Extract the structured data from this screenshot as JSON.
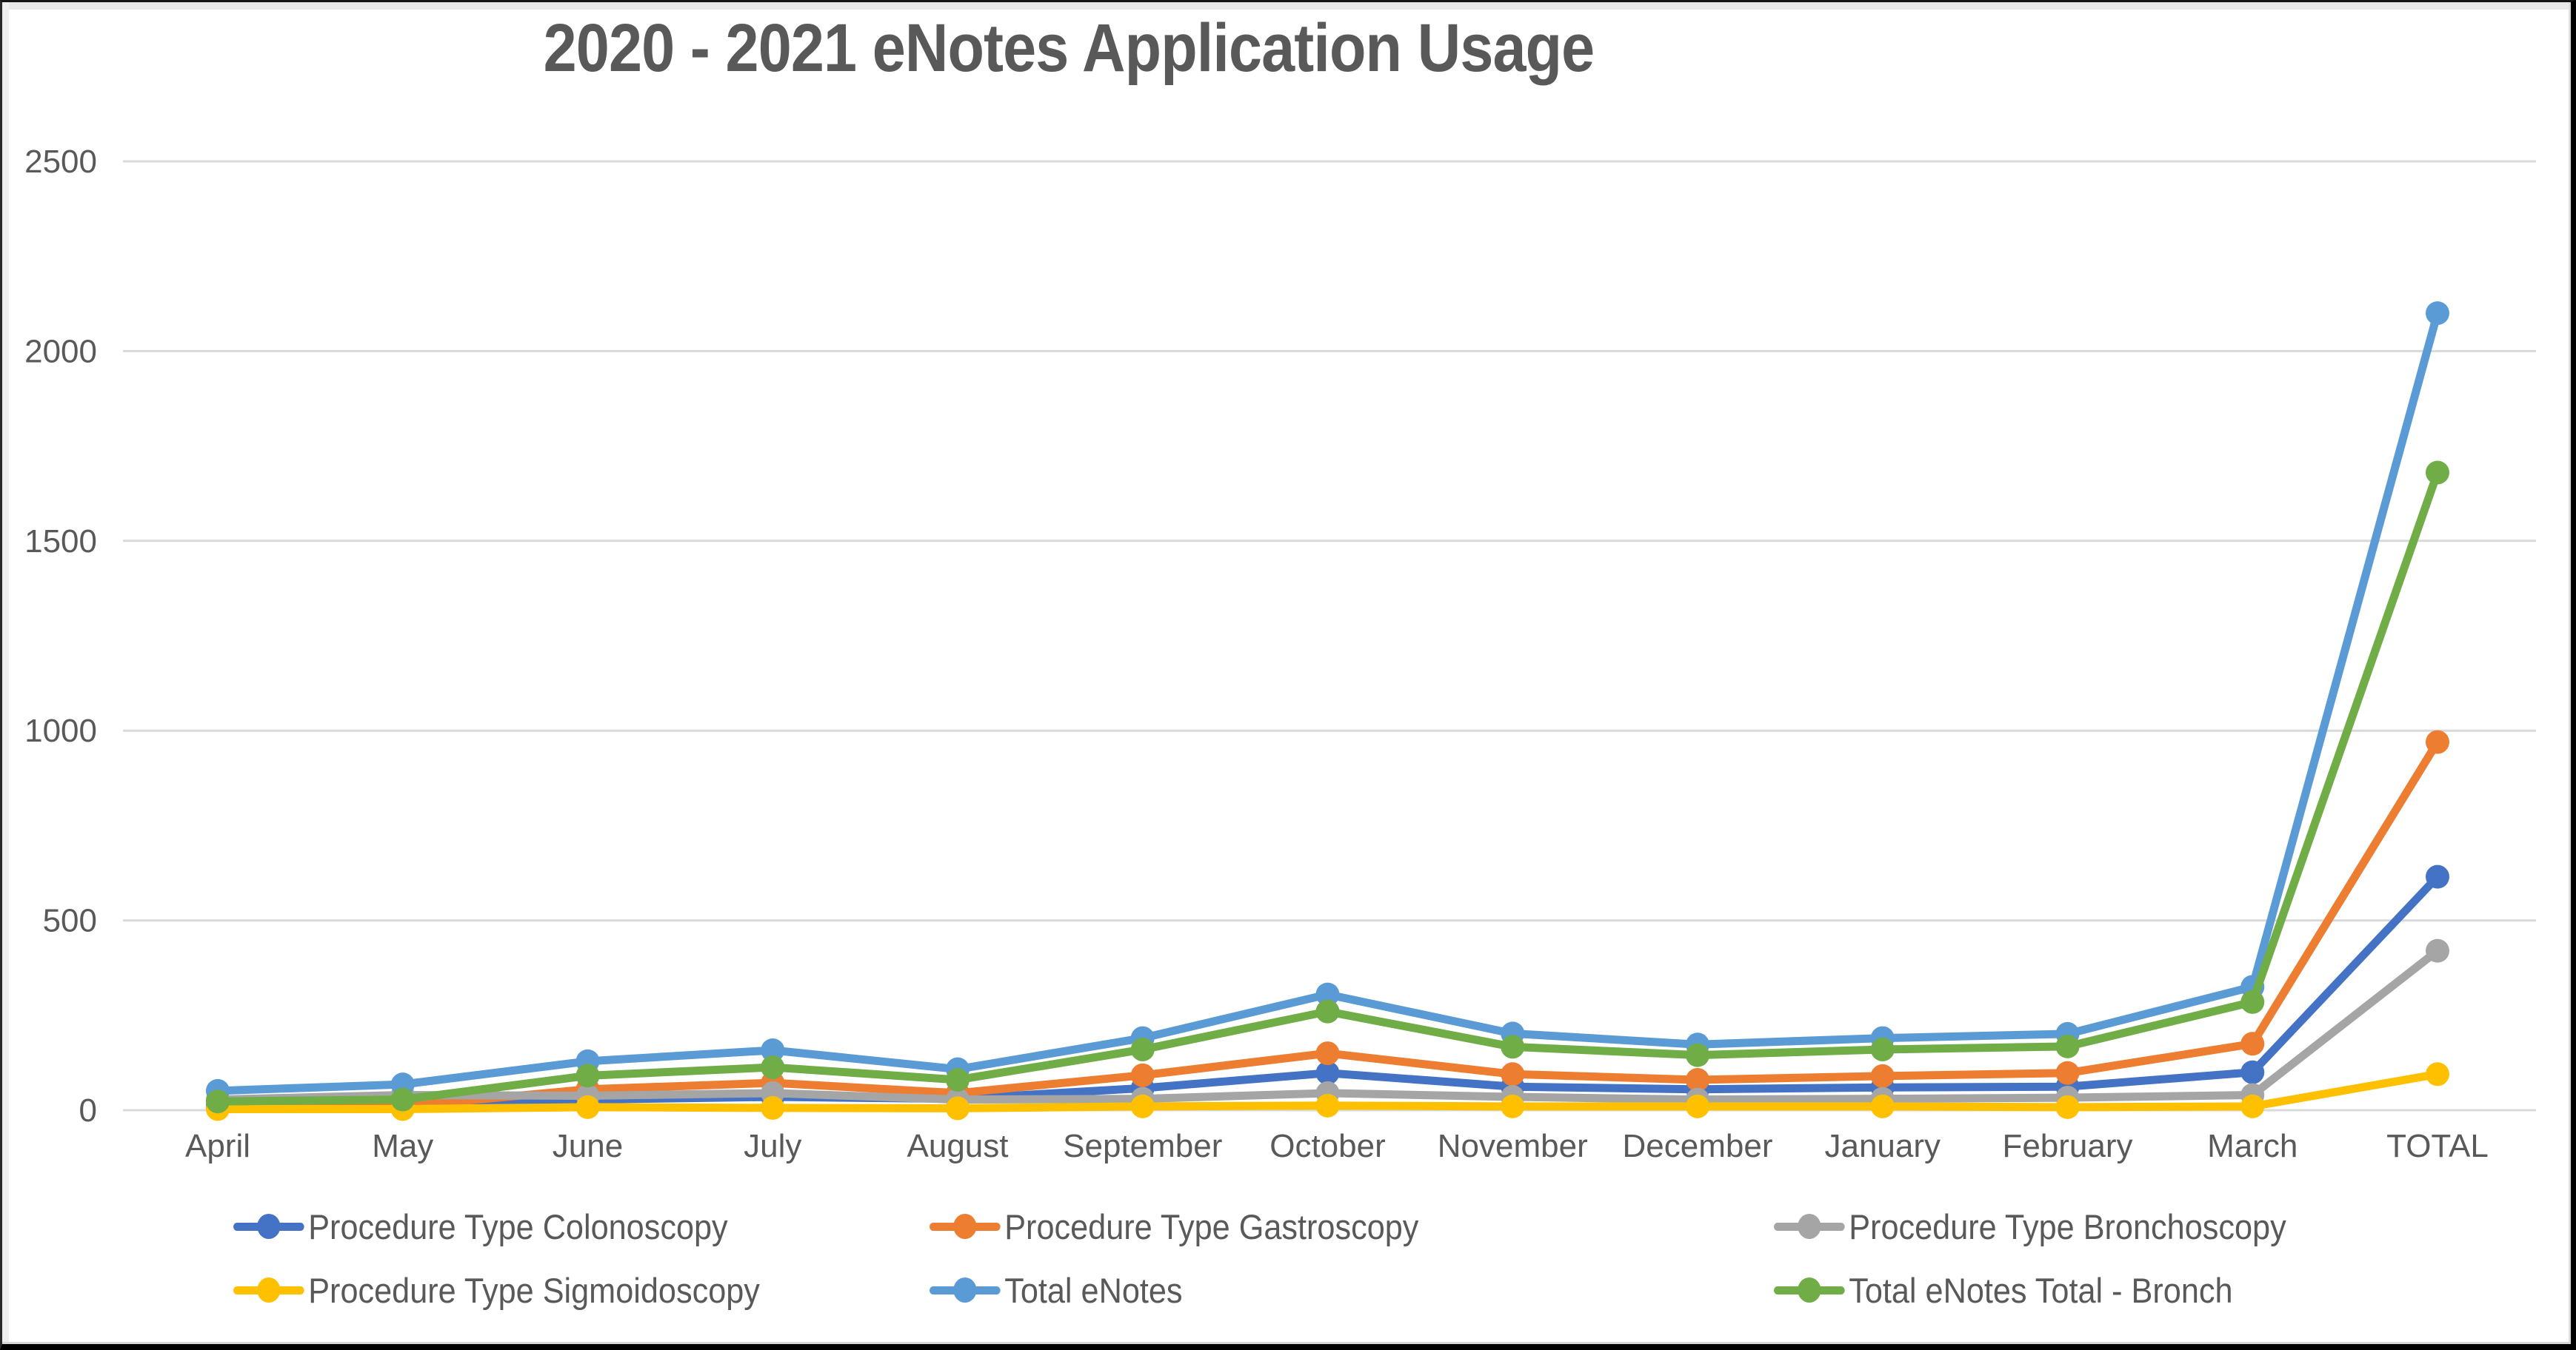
{
  "title": "2020 - 2021 eNotes Application Usage",
  "chart_data": {
    "type": "line",
    "title": "2020 - 2021 eNotes Application Usage",
    "categories": [
      "April",
      "May",
      "June",
      "July",
      "August",
      "September",
      "October",
      "November",
      "December",
      "January",
      "February",
      "March",
      "TOTAL"
    ],
    "series": [
      {
        "name": "Procedure Type Colonoscopy",
        "color": "#4472C4",
        "values": [
          12,
          15,
          28,
          35,
          30,
          58,
          98,
          62,
          55,
          60,
          62,
          100,
          615
        ]
      },
      {
        "name": "Procedure Type Gastroscopy",
        "color": "#ED7D31",
        "values": [
          8,
          10,
          55,
          72,
          45,
          92,
          150,
          95,
          80,
          90,
          98,
          175,
          970
        ]
      },
      {
        "name": "Procedure Type Bronchoscopy",
        "color": "#A5A5A5",
        "values": [
          28,
          40,
          38,
          45,
          28,
          30,
          45,
          35,
          28,
          30,
          33,
          40,
          420
        ]
      },
      {
        "name": "Procedure Type Sigmoidoscopy",
        "color": "#FFC000",
        "values": [
          3,
          3,
          8,
          6,
          5,
          10,
          12,
          10,
          10,
          10,
          8,
          10,
          95
        ]
      },
      {
        "name": "Total eNotes",
        "color": "#5B9BD5",
        "values": [
          51,
          68,
          129,
          158,
          108,
          190,
          305,
          202,
          173,
          190,
          201,
          325,
          2100
        ]
      },
      {
        "name": "Total eNotes Total - Bronch",
        "color": "#70AD47",
        "values": [
          23,
          28,
          91,
          113,
          80,
          160,
          260,
          167,
          145,
          160,
          168,
          285,
          1680
        ]
      }
    ],
    "xlabel": "",
    "ylabel": "",
    "ylim": [
      0,
      2500
    ],
    "yticks": [
      0,
      500,
      1000,
      1500,
      2000,
      2500
    ],
    "grid": true,
    "gridline_color": "#D9D9D9",
    "tick_label_color": "#595959",
    "title_color": "#595959",
    "legend_position": "bottom",
    "legend_rows": [
      [
        0,
        1,
        2
      ],
      [
        3,
        4,
        5
      ]
    ]
  }
}
